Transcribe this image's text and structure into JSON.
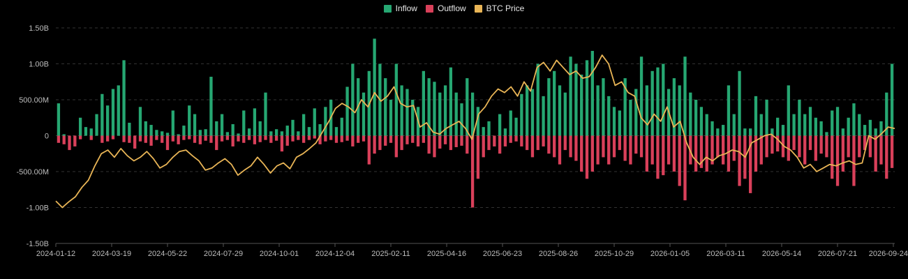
{
  "legend": {
    "items": [
      {
        "label": "Inflow",
        "color": "#26a772"
      },
      {
        "label": "Outflow",
        "color": "#d9405a"
      },
      {
        "label": "BTC Price",
        "color": "#e9b556"
      }
    ]
  },
  "chart_data": {
    "type": "bar",
    "title": "",
    "xlabel": "",
    "ylabel": "",
    "ylim": [
      -1500000000,
      1500000000
    ],
    "y_ticks": [
      {
        "value": 1500000000,
        "label": "1.50B"
      },
      {
        "value": 1000000000,
        "label": "1.00B"
      },
      {
        "value": 500000000,
        "label": "500.00M"
      },
      {
        "value": 0,
        "label": "0"
      },
      {
        "value": -500000000,
        "label": "-500.00M"
      },
      {
        "value": -1000000000,
        "label": "-1.00B"
      },
      {
        "value": -1500000000,
        "label": "-1.50B"
      }
    ],
    "x_ticks": [
      "2024-01-12",
      "2024-03-19",
      "2024-05-22",
      "2024-07-29",
      "2024-10-01",
      "2024-12-04",
      "2025-02-11",
      "2025-04-16",
      "2025-06-23",
      "2025-08-26",
      "2025-10-29",
      "2026-01-05",
      "2026-03-11",
      "2026-05-14",
      "2026-07-21",
      "2026-09-24"
    ],
    "grid": "horizontal-dashed",
    "legend_position": "top-center",
    "colors": {
      "inflow": "#26a772",
      "outflow": "#d9405a",
      "price": "#e9b556",
      "grid": "#333333",
      "axis": "#555555"
    },
    "flows": {
      "note_unit": "USD",
      "points": [
        [
          0,
          450,
          -100
        ],
        [
          1,
          20,
          -120
        ],
        [
          2,
          0,
          -200
        ],
        [
          3,
          0,
          -150
        ],
        [
          4,
          250,
          -50
        ],
        [
          5,
          120,
          0
        ],
        [
          6,
          100,
          -60
        ],
        [
          7,
          300,
          0
        ],
        [
          8,
          580,
          -100
        ],
        [
          9,
          420,
          -80
        ],
        [
          10,
          650,
          -50
        ],
        [
          11,
          700,
          0
        ],
        [
          12,
          1050,
          -90
        ],
        [
          13,
          180,
          -100
        ],
        [
          14,
          0,
          -180
        ],
        [
          15,
          400,
          -80
        ],
        [
          16,
          200,
          -100
        ],
        [
          17,
          150,
          -140
        ],
        [
          18,
          80,
          -60
        ],
        [
          19,
          60,
          -100
        ],
        [
          20,
          40,
          -200
        ],
        [
          21,
          350,
          -80
        ],
        [
          22,
          20,
          -120
        ],
        [
          23,
          140,
          -60
        ],
        [
          24,
          420,
          -50
        ],
        [
          25,
          300,
          -100
        ],
        [
          26,
          80,
          -120
        ],
        [
          27,
          90,
          -70
        ],
        [
          28,
          820,
          -100
        ],
        [
          29,
          200,
          -200
        ],
        [
          30,
          300,
          -80
        ],
        [
          31,
          50,
          -60
        ],
        [
          32,
          160,
          -150
        ],
        [
          33,
          30,
          -80
        ],
        [
          34,
          350,
          -100
        ],
        [
          35,
          100,
          -60
        ],
        [
          36,
          380,
          -120
        ],
        [
          37,
          200,
          -90
        ],
        [
          38,
          600,
          -60
        ],
        [
          39,
          60,
          -100
        ],
        [
          40,
          90,
          -70
        ],
        [
          41,
          60,
          -220
        ],
        [
          42,
          140,
          -140
        ],
        [
          43,
          220,
          -80
        ],
        [
          44,
          60,
          -60
        ],
        [
          45,
          300,
          -100
        ],
        [
          46,
          120,
          -60
        ],
        [
          47,
          380,
          -40
        ],
        [
          48,
          160,
          -120
        ],
        [
          49,
          400,
          -80
        ],
        [
          50,
          500,
          -60
        ],
        [
          51,
          120,
          -100
        ],
        [
          52,
          250,
          -90
        ],
        [
          53,
          680,
          -70
        ],
        [
          54,
          1000,
          -150
        ],
        [
          55,
          800,
          -100
        ],
        [
          56,
          600,
          -80
        ],
        [
          57,
          900,
          -400
        ],
        [
          58,
          1350,
          -250
        ],
        [
          59,
          1000,
          -200
        ],
        [
          60,
          800,
          -140
        ],
        [
          61,
          500,
          -100
        ],
        [
          62,
          1000,
          -300
        ],
        [
          63,
          700,
          -200
        ],
        [
          64,
          650,
          -120
        ],
        [
          65,
          500,
          -100
        ],
        [
          66,
          400,
          -150
        ],
        [
          67,
          900,
          -100
        ],
        [
          68,
          800,
          -250
        ],
        [
          69,
          750,
          -300
        ],
        [
          70,
          600,
          -180
        ],
        [
          71,
          700,
          -120
        ],
        [
          72,
          950,
          -200
        ],
        [
          73,
          600,
          -160
        ],
        [
          74,
          450,
          -140
        ],
        [
          75,
          800,
          -250
        ],
        [
          76,
          600,
          -1000
        ],
        [
          77,
          400,
          -600
        ],
        [
          78,
          120,
          -300
        ],
        [
          79,
          200,
          -200
        ],
        [
          80,
          0,
          -150
        ],
        [
          81,
          300,
          -250
        ],
        [
          82,
          100,
          -150
        ],
        [
          83,
          350,
          -100
        ],
        [
          84,
          250,
          -80
        ],
        [
          85,
          580,
          -150
        ],
        [
          86,
          700,
          -200
        ],
        [
          87,
          650,
          -300
        ],
        [
          88,
          1000,
          -200
        ],
        [
          89,
          550,
          -150
        ],
        [
          90,
          800,
          -250
        ],
        [
          91,
          900,
          -300
        ],
        [
          92,
          700,
          -400
        ],
        [
          93,
          600,
          -200
        ],
        [
          94,
          1100,
          -300
        ],
        [
          95,
          1000,
          -350
        ],
        [
          96,
          850,
          -500
        ],
        [
          97,
          1050,
          -600
        ],
        [
          98,
          1180,
          -500
        ],
        [
          99,
          700,
          -400
        ],
        [
          100,
          800,
          -300
        ],
        [
          101,
          550,
          -400
        ],
        [
          102,
          400,
          -300
        ],
        [
          103,
          350,
          -200
        ],
        [
          104,
          800,
          -350
        ],
        [
          105,
          500,
          -400
        ],
        [
          106,
          650,
          -250
        ],
        [
          107,
          1100,
          -300
        ],
        [
          108,
          700,
          -500
        ],
        [
          109,
          900,
          -400
        ],
        [
          110,
          950,
          -600
        ],
        [
          111,
          1000,
          -550
        ],
        [
          112,
          650,
          -400
        ],
        [
          113,
          800,
          -500
        ],
        [
          114,
          700,
          -700
        ],
        [
          115,
          1100,
          -900
        ],
        [
          116,
          600,
          -400
        ],
        [
          117,
          500,
          -500
        ],
        [
          118,
          400,
          -450
        ],
        [
          119,
          300,
          -500
        ],
        [
          120,
          200,
          -400
        ],
        [
          121,
          100,
          -300
        ],
        [
          122,
          150,
          -400
        ],
        [
          123,
          700,
          -500
        ],
        [
          124,
          300,
          -350
        ],
        [
          125,
          900,
          -700
        ],
        [
          126,
          100,
          -600
        ],
        [
          127,
          100,
          -800
        ],
        [
          128,
          550,
          -500
        ],
        [
          129,
          300,
          -400
        ],
        [
          130,
          500,
          -300
        ],
        [
          131,
          100,
          -250
        ],
        [
          132,
          250,
          -220
        ],
        [
          133,
          150,
          -300
        ],
        [
          134,
          700,
          -350
        ],
        [
          135,
          300,
          -200
        ],
        [
          136,
          500,
          -300
        ],
        [
          137,
          300,
          -400
        ],
        [
          138,
          400,
          -200
        ],
        [
          139,
          250,
          -350
        ],
        [
          140,
          200,
          -250
        ],
        [
          141,
          50,
          -300
        ],
        [
          142,
          350,
          -600
        ],
        [
          143,
          400,
          -700
        ],
        [
          144,
          100,
          -500
        ],
        [
          145,
          250,
          -300
        ],
        [
          146,
          450,
          -700
        ],
        [
          147,
          300,
          -300
        ],
        [
          148,
          150,
          -200
        ],
        [
          149,
          220,
          -300
        ],
        [
          150,
          100,
          -500
        ],
        [
          151,
          200,
          -400
        ],
        [
          152,
          600,
          -600
        ],
        [
          153,
          1000,
          -450
        ]
      ]
    },
    "price": {
      "points": [
        [
          0,
          -0.91
        ],
        [
          1,
          -1.0
        ],
        [
          2,
          -0.92
        ],
        [
          3,
          -0.85
        ],
        [
          4,
          -0.72
        ],
        [
          5,
          -0.62
        ],
        [
          6,
          -0.42
        ],
        [
          7,
          -0.25
        ],
        [
          8,
          -0.2
        ],
        [
          9,
          -0.3
        ],
        [
          10,
          -0.18
        ],
        [
          11,
          -0.28
        ],
        [
          12,
          -0.35
        ],
        [
          13,
          -0.3
        ],
        [
          14,
          -0.22
        ],
        [
          15,
          -0.32
        ],
        [
          16,
          -0.45
        ],
        [
          17,
          -0.4
        ],
        [
          18,
          -0.3
        ],
        [
          19,
          -0.22
        ],
        [
          20,
          -0.2
        ],
        [
          21,
          -0.28
        ],
        [
          22,
          -0.35
        ],
        [
          23,
          -0.48
        ],
        [
          24,
          -0.45
        ],
        [
          25,
          -0.38
        ],
        [
          26,
          -0.32
        ],
        [
          27,
          -0.4
        ],
        [
          28,
          -0.55
        ],
        [
          29,
          -0.48
        ],
        [
          30,
          -0.42
        ],
        [
          31,
          -0.3
        ],
        [
          32,
          -0.4
        ],
        [
          33,
          -0.52
        ],
        [
          34,
          -0.42
        ],
        [
          35,
          -0.38
        ],
        [
          36,
          -0.46
        ],
        [
          37,
          -0.3
        ],
        [
          38,
          -0.25
        ],
        [
          39,
          -0.18
        ],
        [
          40,
          -0.1
        ],
        [
          41,
          0.05
        ],
        [
          42,
          0.2
        ],
        [
          43,
          0.38
        ],
        [
          44,
          0.45
        ],
        [
          45,
          0.4
        ],
        [
          46,
          0.32
        ],
        [
          47,
          0.5
        ],
        [
          48,
          0.4
        ],
        [
          49,
          0.6
        ],
        [
          50,
          0.48
        ],
        [
          51,
          0.55
        ],
        [
          52,
          0.68
        ],
        [
          53,
          0.45
        ],
        [
          54,
          0.4
        ],
        [
          55,
          0.42
        ],
        [
          56,
          0.12
        ],
        [
          57,
          0.18
        ],
        [
          58,
          0.05
        ],
        [
          59,
          0.02
        ],
        [
          60,
          0.1
        ],
        [
          61,
          0.15
        ],
        [
          62,
          0.2
        ],
        [
          63,
          0.1
        ],
        [
          64,
          -0.05
        ],
        [
          65,
          0.3
        ],
        [
          66,
          0.4
        ],
        [
          67,
          0.55
        ],
        [
          68,
          0.65
        ],
        [
          69,
          0.6
        ],
        [
          70,
          0.68
        ],
        [
          71,
          0.55
        ],
        [
          72,
          0.75
        ],
        [
          73,
          0.62
        ],
        [
          74,
          0.95
        ],
        [
          75,
          1.02
        ],
        [
          76,
          0.9
        ],
        [
          77,
          1.05
        ],
        [
          78,
          0.95
        ],
        [
          79,
          0.85
        ],
        [
          80,
          0.9
        ],
        [
          81,
          0.8
        ],
        [
          82,
          0.82
        ],
        [
          83,
          0.95
        ],
        [
          84,
          1.12
        ],
        [
          85,
          1.0
        ],
        [
          86,
          0.7
        ],
        [
          87,
          0.75
        ],
        [
          88,
          0.6
        ],
        [
          89,
          0.55
        ],
        [
          90,
          0.25
        ],
        [
          91,
          0.15
        ],
        [
          92,
          0.3
        ],
        [
          93,
          0.2
        ],
        [
          94,
          0.4
        ],
        [
          95,
          0.12
        ],
        [
          96,
          0.2
        ],
        [
          97,
          -0.1
        ],
        [
          98,
          -0.3
        ],
        [
          99,
          -0.4
        ],
        [
          100,
          -0.3
        ],
        [
          101,
          -0.35
        ],
        [
          102,
          -0.28
        ],
        [
          103,
          -0.25
        ],
        [
          104,
          -0.2
        ],
        [
          105,
          -0.22
        ],
        [
          106,
          -0.3
        ],
        [
          107,
          -0.1
        ],
        [
          108,
          -0.05
        ],
        [
          109,
          0.0
        ],
        [
          110,
          0.02
        ],
        [
          111,
          -0.05
        ],
        [
          112,
          -0.15
        ],
        [
          113,
          -0.2
        ],
        [
          114,
          -0.3
        ],
        [
          115,
          -0.45
        ],
        [
          116,
          -0.4
        ],
        [
          117,
          -0.5
        ],
        [
          118,
          -0.45
        ],
        [
          119,
          -0.4
        ],
        [
          120,
          -0.42
        ],
        [
          121,
          -0.38
        ],
        [
          122,
          -0.35
        ],
        [
          123,
          -0.4
        ],
        [
          124,
          -0.38
        ],
        [
          125,
          0.0
        ],
        [
          126,
          -0.05
        ],
        [
          127,
          0.03
        ],
        [
          128,
          0.12
        ],
        [
          129,
          0.1
        ]
      ]
    }
  }
}
